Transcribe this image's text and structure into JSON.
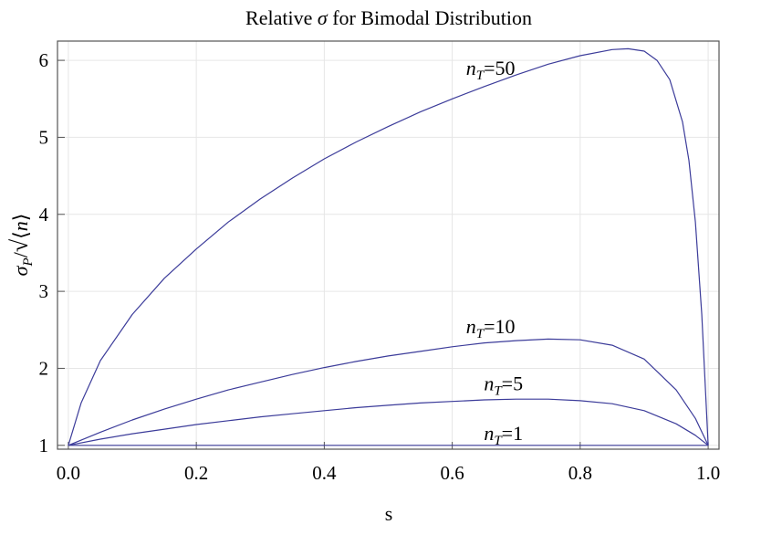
{
  "chart_data": {
    "type": "line",
    "title_pre": "Relative ",
    "title_sym": "σ",
    "title_post": " for Bimodal Distribution",
    "xlabel": "s",
    "ylabel_sigma": "σ",
    "ylabel_sub": "P",
    "ylabel_n": "n",
    "xlim": [
      0,
      1
    ],
    "ylim": [
      0.95,
      6.25
    ],
    "xticks": [
      "0.0",
      "0.2",
      "0.4",
      "0.6",
      "0.8",
      "1.0"
    ],
    "yticks": [
      "1",
      "2",
      "3",
      "4",
      "5",
      "6"
    ],
    "grid": true,
    "series": [
      {
        "label_base": "n",
        "label_sub": "T",
        "label_eq": "=1",
        "x": [
          0,
          0.1,
          0.2,
          0.3,
          0.4,
          0.5,
          0.6,
          0.7,
          0.8,
          0.9,
          1.0
        ],
        "y": [
          1,
          1,
          1,
          1,
          1,
          1,
          1,
          1,
          1,
          1,
          1
        ]
      },
      {
        "label_base": "n",
        "label_sub": "T",
        "label_eq": "=5",
        "x": [
          0,
          0.05,
          0.1,
          0.15,
          0.2,
          0.25,
          0.3,
          0.35,
          0.4,
          0.45,
          0.5,
          0.55,
          0.6,
          0.65,
          0.7,
          0.75,
          0.8,
          0.85,
          0.9,
          0.95,
          0.98,
          1.0
        ],
        "y": [
          1,
          1.08,
          1.15,
          1.21,
          1.27,
          1.32,
          1.37,
          1.41,
          1.45,
          1.49,
          1.52,
          1.55,
          1.57,
          1.59,
          1.6,
          1.6,
          1.58,
          1.54,
          1.45,
          1.28,
          1.13,
          1
        ]
      },
      {
        "label_base": "n",
        "label_sub": "T",
        "label_eq": "=10",
        "x": [
          0,
          0.05,
          0.1,
          0.15,
          0.2,
          0.25,
          0.3,
          0.35,
          0.4,
          0.45,
          0.5,
          0.55,
          0.6,
          0.65,
          0.7,
          0.75,
          0.8,
          0.85,
          0.9,
          0.95,
          0.98,
          1.0
        ],
        "y": [
          1,
          1.17,
          1.33,
          1.47,
          1.6,
          1.72,
          1.82,
          1.92,
          2.01,
          2.09,
          2.16,
          2.22,
          2.28,
          2.33,
          2.36,
          2.38,
          2.37,
          2.3,
          2.12,
          1.72,
          1.35,
          1
        ]
      },
      {
        "label_base": "n",
        "label_sub": "T",
        "label_eq": "=50",
        "x": [
          0,
          0.02,
          0.05,
          0.1,
          0.15,
          0.2,
          0.25,
          0.3,
          0.35,
          0.4,
          0.45,
          0.5,
          0.55,
          0.6,
          0.65,
          0.7,
          0.75,
          0.8,
          0.85,
          0.875,
          0.9,
          0.92,
          0.94,
          0.96,
          0.97,
          0.98,
          0.99,
          1.0
        ],
        "y": [
          1,
          1.55,
          2.1,
          2.7,
          3.17,
          3.55,
          3.9,
          4.2,
          4.47,
          4.72,
          4.94,
          5.14,
          5.33,
          5.5,
          5.66,
          5.81,
          5.95,
          6.06,
          6.14,
          6.15,
          6.12,
          6.0,
          5.75,
          5.2,
          4.7,
          3.9,
          2.7,
          1
        ]
      }
    ]
  }
}
